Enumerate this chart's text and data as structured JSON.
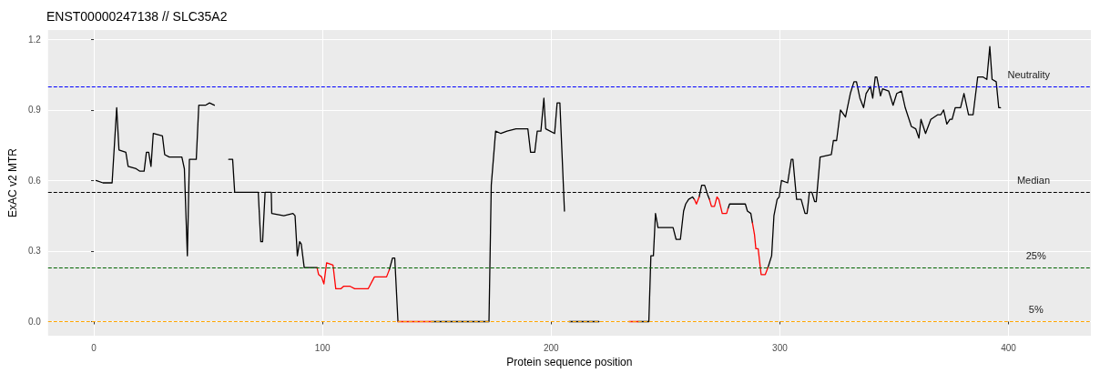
{
  "chart_data": {
    "type": "line",
    "title": "ENST00000247138 // SLC35A2",
    "xlabel": "Protein sequence position",
    "ylabel": "ExAC v2 MTR",
    "xlim": [
      -20,
      436
    ],
    "xticks": [
      0,
      100,
      200,
      300,
      400
    ],
    "ylim": [
      -0.06,
      1.24
    ],
    "yticks": [
      {
        "value": 0,
        "label": "0.0"
      },
      {
        "value": 0.3,
        "label": "0.3"
      },
      {
        "value": 0.6,
        "label": "0.6"
      },
      {
        "value": 0.9,
        "label": "0.9"
      },
      {
        "value": 1.2,
        "label": "1.2"
      }
    ],
    "grid": true,
    "marker": "none",
    "line_style": "solid",
    "series": [
      {
        "color": "#000000",
        "x": [
          1,
          4,
          8,
          10,
          11,
          14,
          15,
          18.5,
          20,
          22,
          23,
          24,
          25,
          26,
          30,
          31,
          33,
          38.5,
          39.6,
          40.9,
          41.8,
          44.8,
          45.9,
          48.8,
          50.6,
          52.7,
          56,
          59,
          60.7,
          61.6,
          67.3,
          71.9,
          73,
          73.8,
          74.9,
          77.6,
          77.8,
          83.1,
          87.1,
          88,
          89,
          90,
          90.7,
          92,
          97.6,
          110,
          129.2,
          130.6,
          131.6,
          133,
          140,
          147.7,
          166,
          172.8,
          173.8,
          175.7,
          178,
          180.7,
          184.6,
          189.3,
          189.8,
          191,
          192.8,
          193.9,
          195.5,
          196.8,
          197.6,
          201.5,
          202.6,
          203.8,
          205.8,
          207,
          207.8,
          220.9,
          230,
          238,
          242.7,
          243.6,
          244.7,
          245.6,
          246.7,
          253.3,
          254.6,
          256.5,
          257.9,
          258.8,
          260.1,
          261.8,
          262.6,
          263.5,
          264.7,
          265.8,
          267.1,
          268.4,
          269.2,
          273,
          277.3,
          278,
          283.6,
          284.9,
          285.8,
          287.3,
          288,
          291,
          294.8,
          296.4,
          297.4,
          298.8,
          299.7,
          300.7,
          303.4,
          305,
          305.7,
          307.3,
          309.3,
          311,
          311.9,
          312.9,
          314,
          315.2,
          315.9,
          317.6,
          322.5,
          323.4,
          324.8,
          326.5,
          328.7,
          330.8,
          332.4,
          333.5,
          335,
          336.6,
          337.7,
          339.6,
          340.6,
          341.7,
          342.4,
          344,
          344.9,
          347.6,
          349.5,
          351.1,
          353.2,
          354.8,
          357.5,
          359.4,
          360.8,
          361.7,
          363.7,
          366,
          369.1,
          370.4,
          371.6,
          373,
          374.4,
          375.3,
          376.7,
          379,
          380.5,
          382.5,
          384.5,
          386.5,
          388.9,
          390.5,
          391.8,
          392.8,
          394.6,
          395.7,
          396.5
        ],
        "values": [
          0.6,
          0.59,
          0.59,
          0.91,
          0.73,
          0.72,
          0.66,
          0.65,
          0.64,
          0.64,
          0.72,
          0.72,
          0.66,
          0.8,
          0.79,
          0.71,
          0.7,
          0.7,
          0.65,
          0.28,
          0.69,
          0.69,
          0.92,
          0.92,
          0.93,
          0.92,
          null,
          0.69,
          0.69,
          0.55,
          0.55,
          0.55,
          0.34,
          0.34,
          0.55,
          0.55,
          0.46,
          0.45,
          0.46,
          0.45,
          0.28,
          0.34,
          0.33,
          0.23,
          0.23,
          null,
          0.22,
          0.27,
          0.27,
          0,
          null,
          0,
          0,
          0,
          0.58,
          0.81,
          0.8,
          0.81,
          0.82,
          0.82,
          0.82,
          0.72,
          0.72,
          0.81,
          0.81,
          0.95,
          0.82,
          0.8,
          0.93,
          0.93,
          0.47,
          null,
          0,
          0,
          null,
          0,
          0,
          0.28,
          0.28,
          0.46,
          0.4,
          0.4,
          0.35,
          0.35,
          0.47,
          0.5,
          0.52,
          0.53,
          0.52,
          null,
          0.53,
          0.58,
          0.58,
          0.54,
          0.52,
          null,
          0.48,
          0.5,
          0.5,
          0.5,
          0.47,
          0.46,
          0.42,
          null,
          0.23,
          0.28,
          0.45,
          0.52,
          0.53,
          0.6,
          0.59,
          0.69,
          0.69,
          0.52,
          0.52,
          0.46,
          0.46,
          0.55,
          0.55,
          0.51,
          0.51,
          0.7,
          0.71,
          0.77,
          0.77,
          0.9,
          0.87,
          0.97,
          1.02,
          1.02,
          0.95,
          0.91,
          0.97,
          1.0,
          0.95,
          1.04,
          1.04,
          0.96,
          0.99,
          0.98,
          0.92,
          0.97,
          0.98,
          0.91,
          0.83,
          0.82,
          0.78,
          0.86,
          0.8,
          0.86,
          0.88,
          0.88,
          0.9,
          0.84,
          0.86,
          0.86,
          0.91,
          0.91,
          0.97,
          0.88,
          0.88,
          1.04,
          1.04,
          1.03,
          1.17,
          1.03,
          1.02,
          0.91,
          0.91
        ]
      },
      {
        "color": "#ff0000",
        "x": [
          97.6,
          98.3,
          99.6,
          100.6,
          101.8,
          104.6,
          105.8,
          108.1,
          109.2,
          112.1,
          114.1,
          120,
          122.7,
          128,
          129.2,
          131,
          133,
          147.7,
          190,
          234,
          238,
          250,
          262.6,
          263.5,
          264.7,
          267,
          269.2,
          270.1,
          271.4,
          272.5,
          273.3,
          274.8,
          276.7,
          277.3,
          283,
          288,
          288.9,
          289.5,
          290.5,
          291.8,
          293.6,
          294.8
        ],
        "values": [
          0.23,
          0.2,
          0.19,
          0.16,
          0.25,
          0.24,
          0.14,
          0.14,
          0.15,
          0.15,
          0.14,
          0.14,
          0.19,
          0.19,
          0.22,
          null,
          0,
          0,
          null,
          0,
          0,
          null,
          0.52,
          0.5,
          0.53,
          null,
          0.52,
          0.49,
          0.49,
          0.53,
          0.52,
          0.46,
          0.46,
          0.48,
          null,
          0.42,
          0.37,
          0.31,
          0.31,
          0.2,
          0.2,
          0.23
        ]
      }
    ],
    "ref_lines": [
      {
        "axis": "y",
        "value": 1.0,
        "label": "Neutrality",
        "color": "#0000ff",
        "line_style": "dashed"
      },
      {
        "axis": "y",
        "value": 0.55,
        "label": "Median",
        "color": "#000000",
        "line_style": "dashed"
      },
      {
        "axis": "y",
        "value": 0.23,
        "color": "#006400",
        "line_style": "dashed"
      },
      {
        "axis": "y",
        "value": 0,
        "color": "#ffa500",
        "line_style": "dashed"
      }
    ],
    "annotations": [
      {
        "text": "25%",
        "x": 412,
        "y": 0.23
      },
      {
        "text": "5%",
        "x": 412,
        "y": 0
      }
    ]
  }
}
